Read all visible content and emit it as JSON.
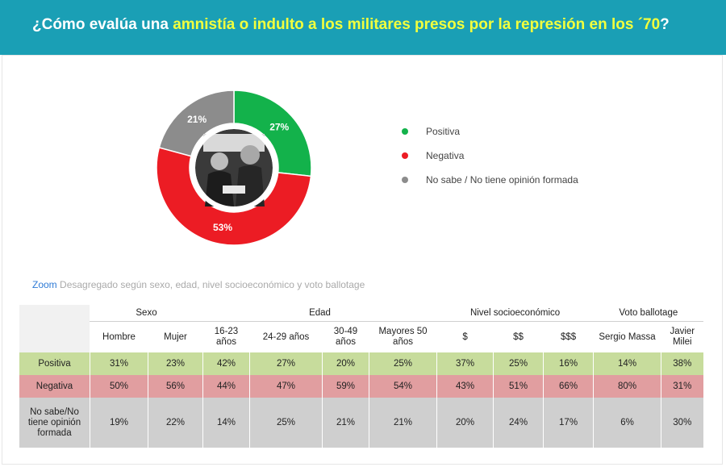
{
  "header": {
    "title_prefix": "¿Cómo evalúa una ",
    "title_highlight": "amnistía o indulto a los militares presos por la represión en los ´70",
    "title_suffix": "?"
  },
  "colors": {
    "header_bg": "#1a9fb5",
    "highlight": "#f2ff3d",
    "positiva": "#13b24b",
    "negativa": "#ec1c24",
    "no_sabe": "#8c8c8c"
  },
  "chart_data": {
    "type": "pie",
    "variant": "donut",
    "title": "",
    "categories": [
      "Positiva",
      "Negativa",
      "No sabe / No tiene opinión formada"
    ],
    "values": [
      27,
      53,
      21
    ],
    "labels": [
      "27%",
      "53%",
      "21%"
    ],
    "legend_position": "right"
  },
  "zoom": {
    "label": "Zoom",
    "text": " Desagregado según sexo, edad, nivel socioeconómico y voto ballotage"
  },
  "table": {
    "groups": [
      "Sexo",
      "Edad",
      "Nivel socioeconómico",
      "Voto ballotage"
    ],
    "columns": [
      "Hombre",
      "Mujer",
      "16-23 años",
      "24-29 años",
      "30-49 años",
      "Mayores 50 años",
      "$",
      "$$",
      "$$$",
      "Sergio Massa",
      "Javier Milei"
    ],
    "rows": [
      {
        "label": "Positiva",
        "values": [
          "31%",
          "23%",
          "42%",
          "27%",
          "20%",
          "25%",
          "37%",
          "25%",
          "16%",
          "14%",
          "38%"
        ]
      },
      {
        "label": "Negativa",
        "values": [
          "50%",
          "56%",
          "44%",
          "47%",
          "59%",
          "54%",
          "43%",
          "51%",
          "66%",
          "80%",
          "31%"
        ]
      },
      {
        "label": "No sabe/No tiene opinión formada",
        "values": [
          "19%",
          "22%",
          "14%",
          "25%",
          "21%",
          "21%",
          "20%",
          "24%",
          "17%",
          "6%",
          "30%"
        ]
      }
    ]
  }
}
